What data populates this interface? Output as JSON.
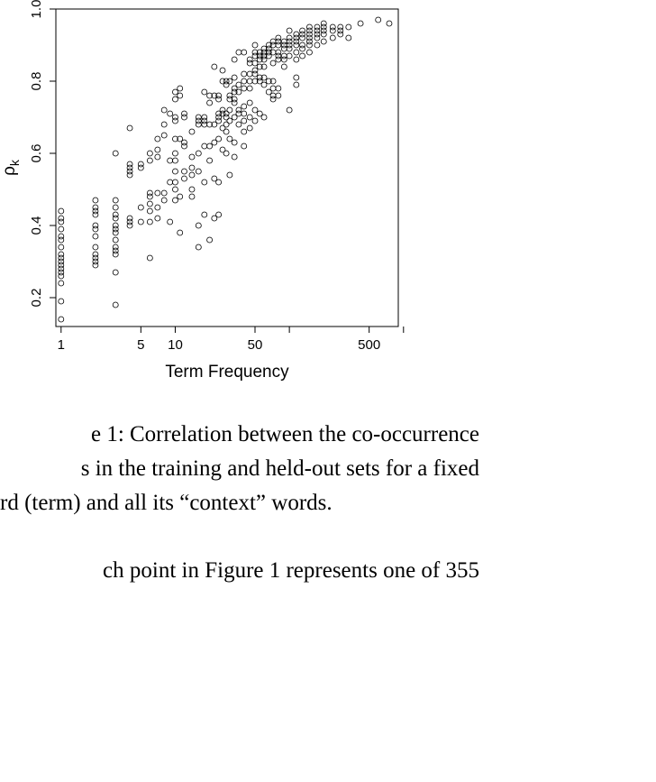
{
  "chart_data": {
    "type": "scatter",
    "title": "",
    "xlabel": "Term Frequency",
    "ylabel_main": "ρ",
    "ylabel_sub": "k",
    "x_scale": "log",
    "xlim": [
      0.9,
      900
    ],
    "ylim": [
      0.12,
      1.0
    ],
    "x_ticks": [
      1,
      5,
      10,
      50,
      100,
      500,
      1000
    ],
    "x_tick_labels": [
      "1",
      "5",
      "10",
      "50",
      "",
      "500",
      ""
    ],
    "y_ticks": [
      0.2,
      0.4,
      0.6,
      0.8,
      1.0
    ],
    "y_tick_labels": [
      "0.2",
      "0.4",
      "0.6",
      "0.8",
      "1.0"
    ],
    "grid": false,
    "marker": "open-circle",
    "points": [
      [
        1,
        0.14
      ],
      [
        1,
        0.19
      ],
      [
        1,
        0.24
      ],
      [
        1,
        0.26
      ],
      [
        1,
        0.27
      ],
      [
        1,
        0.28
      ],
      [
        1,
        0.29
      ],
      [
        1,
        0.3
      ],
      [
        1,
        0.31
      ],
      [
        1,
        0.32
      ],
      [
        1,
        0.34
      ],
      [
        1,
        0.36
      ],
      [
        1,
        0.37
      ],
      [
        1,
        0.39
      ],
      [
        1,
        0.41
      ],
      [
        1,
        0.42
      ],
      [
        1,
        0.44
      ],
      [
        2,
        0.29
      ],
      [
        2,
        0.3
      ],
      [
        2,
        0.31
      ],
      [
        2,
        0.32
      ],
      [
        2,
        0.34
      ],
      [
        2,
        0.37
      ],
      [
        2,
        0.39
      ],
      [
        2,
        0.4
      ],
      [
        2,
        0.43
      ],
      [
        2,
        0.44
      ],
      [
        2,
        0.45
      ],
      [
        2,
        0.47
      ],
      [
        3,
        0.18
      ],
      [
        3,
        0.27
      ],
      [
        3,
        0.32
      ],
      [
        3,
        0.33
      ],
      [
        3,
        0.34
      ],
      [
        3,
        0.36
      ],
      [
        3,
        0.38
      ],
      [
        3,
        0.39
      ],
      [
        3,
        0.4
      ],
      [
        3,
        0.42
      ],
      [
        3,
        0.43
      ],
      [
        3,
        0.45
      ],
      [
        3,
        0.47
      ],
      [
        3,
        0.6
      ],
      [
        4,
        0.4
      ],
      [
        4,
        0.41
      ],
      [
        4,
        0.42
      ],
      [
        4,
        0.54
      ],
      [
        4,
        0.55
      ],
      [
        4,
        0.56
      ],
      [
        4,
        0.57
      ],
      [
        4,
        0.67
      ],
      [
        5,
        0.41
      ],
      [
        5,
        0.45
      ],
      [
        5,
        0.56
      ],
      [
        5,
        0.57
      ],
      [
        6,
        0.31
      ],
      [
        6,
        0.41
      ],
      [
        6,
        0.44
      ],
      [
        6,
        0.46
      ],
      [
        6,
        0.48
      ],
      [
        6,
        0.49
      ],
      [
        6,
        0.58
      ],
      [
        6,
        0.6
      ],
      [
        7,
        0.42
      ],
      [
        7,
        0.45
      ],
      [
        7,
        0.49
      ],
      [
        7,
        0.59
      ],
      [
        7,
        0.61
      ],
      [
        7,
        0.64
      ],
      [
        8,
        0.47
      ],
      [
        8,
        0.49
      ],
      [
        8,
        0.65
      ],
      [
        8,
        0.68
      ],
      [
        8,
        0.72
      ],
      [
        9,
        0.41
      ],
      [
        9,
        0.52
      ],
      [
        9,
        0.58
      ],
      [
        9,
        0.71
      ],
      [
        10,
        0.47
      ],
      [
        10,
        0.5
      ],
      [
        10,
        0.52
      ],
      [
        10,
        0.55
      ],
      [
        10,
        0.58
      ],
      [
        10,
        0.6
      ],
      [
        10,
        0.64
      ],
      [
        10,
        0.69
      ],
      [
        10,
        0.7
      ],
      [
        10,
        0.75
      ],
      [
        10,
        0.77
      ],
      [
        11,
        0.38
      ],
      [
        11,
        0.48
      ],
      [
        11,
        0.64
      ],
      [
        11,
        0.76
      ],
      [
        11,
        0.78
      ],
      [
        12,
        0.53
      ],
      [
        12,
        0.55
      ],
      [
        12,
        0.62
      ],
      [
        12,
        0.63
      ],
      [
        12,
        0.7
      ],
      [
        12,
        0.71
      ],
      [
        14,
        0.48
      ],
      [
        14,
        0.5
      ],
      [
        14,
        0.54
      ],
      [
        14,
        0.56
      ],
      [
        14,
        0.59
      ],
      [
        14,
        0.66
      ],
      [
        16,
        0.34
      ],
      [
        16,
        0.4
      ],
      [
        16,
        0.55
      ],
      [
        16,
        0.6
      ],
      [
        16,
        0.68
      ],
      [
        16,
        0.69
      ],
      [
        16,
        0.7
      ],
      [
        18,
        0.43
      ],
      [
        18,
        0.52
      ],
      [
        18,
        0.62
      ],
      [
        18,
        0.68
      ],
      [
        18,
        0.69
      ],
      [
        18,
        0.7
      ],
      [
        18,
        0.77
      ],
      [
        20,
        0.36
      ],
      [
        20,
        0.58
      ],
      [
        20,
        0.62
      ],
      [
        20,
        0.68
      ],
      [
        20,
        0.74
      ],
      [
        20,
        0.76
      ],
      [
        22,
        0.42
      ],
      [
        22,
        0.53
      ],
      [
        22,
        0.63
      ],
      [
        22,
        0.68
      ],
      [
        22,
        0.76
      ],
      [
        22,
        0.84
      ],
      [
        24,
        0.43
      ],
      [
        24,
        0.52
      ],
      [
        24,
        0.64
      ],
      [
        24,
        0.69
      ],
      [
        24,
        0.7
      ],
      [
        24,
        0.71
      ],
      [
        24,
        0.75
      ],
      [
        24,
        0.76
      ],
      [
        26,
        0.61
      ],
      [
        26,
        0.67
      ],
      [
        26,
        0.71
      ],
      [
        26,
        0.72
      ],
      [
        26,
        0.8
      ],
      [
        26,
        0.83
      ],
      [
        28,
        0.6
      ],
      [
        28,
        0.66
      ],
      [
        28,
        0.68
      ],
      [
        28,
        0.7
      ],
      [
        28,
        0.71
      ],
      [
        28,
        0.79
      ],
      [
        28,
        0.8
      ],
      [
        30,
        0.54
      ],
      [
        30,
        0.64
      ],
      [
        30,
        0.69
      ],
      [
        30,
        0.72
      ],
      [
        30,
        0.75
      ],
      [
        30,
        0.76
      ],
      [
        30,
        0.8
      ],
      [
        33,
        0.59
      ],
      [
        33,
        0.63
      ],
      [
        33,
        0.7
      ],
      [
        33,
        0.74
      ],
      [
        33,
        0.75
      ],
      [
        33,
        0.77
      ],
      [
        33,
        0.78
      ],
      [
        33,
        0.81
      ],
      [
        33,
        0.86
      ],
      [
        36,
        0.68
      ],
      [
        36,
        0.71
      ],
      [
        36,
        0.72
      ],
      [
        36,
        0.77
      ],
      [
        36,
        0.79
      ],
      [
        36,
        0.88
      ],
      [
        40,
        0.62
      ],
      [
        40,
        0.66
      ],
      [
        40,
        0.69
      ],
      [
        40,
        0.71
      ],
      [
        40,
        0.73
      ],
      [
        40,
        0.78
      ],
      [
        40,
        0.8
      ],
      [
        40,
        0.82
      ],
      [
        40,
        0.88
      ],
      [
        45,
        0.67
      ],
      [
        45,
        0.7
      ],
      [
        45,
        0.74
      ],
      [
        45,
        0.78
      ],
      [
        45,
        0.8
      ],
      [
        45,
        0.82
      ],
      [
        45,
        0.85
      ],
      [
        45,
        0.86
      ],
      [
        50,
        0.69
      ],
      [
        50,
        0.72
      ],
      [
        50,
        0.8
      ],
      [
        50,
        0.82
      ],
      [
        50,
        0.83
      ],
      [
        50,
        0.85
      ],
      [
        50,
        0.87
      ],
      [
        50,
        0.88
      ],
      [
        50,
        0.9
      ],
      [
        55,
        0.71
      ],
      [
        55,
        0.8
      ],
      [
        55,
        0.81
      ],
      [
        55,
        0.84
      ],
      [
        55,
        0.86
      ],
      [
        55,
        0.87
      ],
      [
        55,
        0.88
      ],
      [
        60,
        0.7
      ],
      [
        60,
        0.79
      ],
      [
        60,
        0.81
      ],
      [
        60,
        0.84
      ],
      [
        60,
        0.86
      ],
      [
        60,
        0.87
      ],
      [
        60,
        0.88
      ],
      [
        60,
        0.89
      ],
      [
        66,
        0.77
      ],
      [
        66,
        0.8
      ],
      [
        66,
        0.87
      ],
      [
        66,
        0.88
      ],
      [
        66,
        0.89
      ],
      [
        66,
        0.9
      ],
      [
        72,
        0.75
      ],
      [
        72,
        0.76
      ],
      [
        72,
        0.78
      ],
      [
        72,
        0.8
      ],
      [
        72,
        0.85
      ],
      [
        72,
        0.88
      ],
      [
        72,
        0.9
      ],
      [
        72,
        0.91
      ],
      [
        80,
        0.76
      ],
      [
        80,
        0.78
      ],
      [
        80,
        0.86
      ],
      [
        80,
        0.87
      ],
      [
        80,
        0.88
      ],
      [
        80,
        0.9
      ],
      [
        80,
        0.91
      ],
      [
        80,
        0.92
      ],
      [
        90,
        0.84
      ],
      [
        90,
        0.86
      ],
      [
        90,
        0.87
      ],
      [
        90,
        0.89
      ],
      [
        90,
        0.9
      ],
      [
        90,
        0.91
      ],
      [
        100,
        0.72
      ],
      [
        100,
        0.87
      ],
      [
        100,
        0.89
      ],
      [
        100,
        0.9
      ],
      [
        100,
        0.91
      ],
      [
        100,
        0.92
      ],
      [
        100,
        0.94
      ],
      [
        115,
        0.79
      ],
      [
        115,
        0.81
      ],
      [
        115,
        0.86
      ],
      [
        115,
        0.88
      ],
      [
        115,
        0.9
      ],
      [
        115,
        0.91
      ],
      [
        115,
        0.92
      ],
      [
        115,
        0.93
      ],
      [
        130,
        0.87
      ],
      [
        130,
        0.89
      ],
      [
        130,
        0.9
      ],
      [
        130,
        0.92
      ],
      [
        130,
        0.93
      ],
      [
        130,
        0.94
      ],
      [
        150,
        0.88
      ],
      [
        150,
        0.9
      ],
      [
        150,
        0.91
      ],
      [
        150,
        0.92
      ],
      [
        150,
        0.93
      ],
      [
        150,
        0.94
      ],
      [
        150,
        0.95
      ],
      [
        175,
        0.9
      ],
      [
        175,
        0.92
      ],
      [
        175,
        0.93
      ],
      [
        175,
        0.94
      ],
      [
        175,
        0.95
      ],
      [
        200,
        0.91
      ],
      [
        200,
        0.93
      ],
      [
        200,
        0.94
      ],
      [
        200,
        0.95
      ],
      [
        200,
        0.96
      ],
      [
        240,
        0.92
      ],
      [
        240,
        0.94
      ],
      [
        240,
        0.95
      ],
      [
        280,
        0.93
      ],
      [
        280,
        0.94
      ],
      [
        280,
        0.95
      ],
      [
        330,
        0.92
      ],
      [
        330,
        0.95
      ],
      [
        420,
        0.96
      ],
      [
        600,
        0.97
      ],
      [
        750,
        0.96
      ]
    ]
  },
  "caption": {
    "line1": "e 1: Correlation between the co-occurrence",
    "line2": "s in the training and held-out sets for a fixed",
    "line3": "rd (term) and all its “context” words."
  },
  "body_text": {
    "line1": "ch point in Figure 1 represents one of 355"
  }
}
